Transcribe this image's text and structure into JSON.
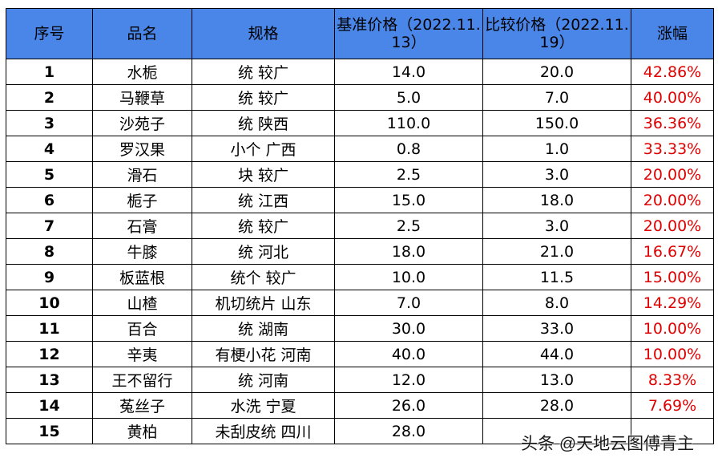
{
  "table": {
    "headers": [
      "序号",
      "品名",
      "规格",
      "基准价格（2022.11.13）",
      "比较价格（2022.11.19）",
      "涨幅"
    ],
    "rows": [
      {
        "no": "1",
        "name": "水栀",
        "spec": "统 较广",
        "base": "14.0",
        "compare": "20.0",
        "change": "42.86%"
      },
      {
        "no": "2",
        "name": "马鞭草",
        "spec": "统 较广",
        "base": "5.0",
        "compare": "7.0",
        "change": "40.00%"
      },
      {
        "no": "3",
        "name": "沙苑子",
        "spec": "统 陕西",
        "base": "110.0",
        "compare": "150.0",
        "change": "36.36%"
      },
      {
        "no": "4",
        "name": "罗汉果",
        "spec": "小个 广西",
        "base": "0.8",
        "compare": "1.0",
        "change": "33.33%"
      },
      {
        "no": "5",
        "name": "滑石",
        "spec": "块 较广",
        "base": "2.5",
        "compare": "3.0",
        "change": "20.00%"
      },
      {
        "no": "6",
        "name": "栀子",
        "spec": "统 江西",
        "base": "15.0",
        "compare": "18.0",
        "change": "20.00%"
      },
      {
        "no": "7",
        "name": "石膏",
        "spec": "统 较广",
        "base": "2.5",
        "compare": "3.0",
        "change": "20.00%"
      },
      {
        "no": "8",
        "name": "牛膝",
        "spec": "统 河北",
        "base": "18.0",
        "compare": "21.0",
        "change": "16.67%"
      },
      {
        "no": "9",
        "name": "板蓝根",
        "spec": "统个 较广",
        "base": "10.0",
        "compare": "11.5",
        "change": "15.00%"
      },
      {
        "no": "10",
        "name": "山楂",
        "spec": "机切统片 山东",
        "base": "7.0",
        "compare": "8.0",
        "change": "14.29%"
      },
      {
        "no": "11",
        "name": "百合",
        "spec": "统 湖南",
        "base": "30.0",
        "compare": "33.0",
        "change": "10.00%"
      },
      {
        "no": "12",
        "name": "辛夷",
        "spec": "有梗小花 河南",
        "base": "40.0",
        "compare": "44.0",
        "change": "10.00%"
      },
      {
        "no": "13",
        "name": "王不留行",
        "spec": "统 河南",
        "base": "12.0",
        "compare": "13.0",
        "change": "8.33%"
      },
      {
        "no": "14",
        "name": "菟丝子",
        "spec": "水洗 宁夏",
        "base": "26.0",
        "compare": "28.0",
        "change": "7.69%"
      },
      {
        "no": "15",
        "name": "黄柏",
        "spec": "未刮皮统 四川",
        "base": "28.0",
        "compare": "",
        "change": ""
      }
    ]
  },
  "watermark": "头条 @天地云图傅青主",
  "colors": {
    "header_bg": "#4a86e8",
    "change_text": "#e00000"
  }
}
